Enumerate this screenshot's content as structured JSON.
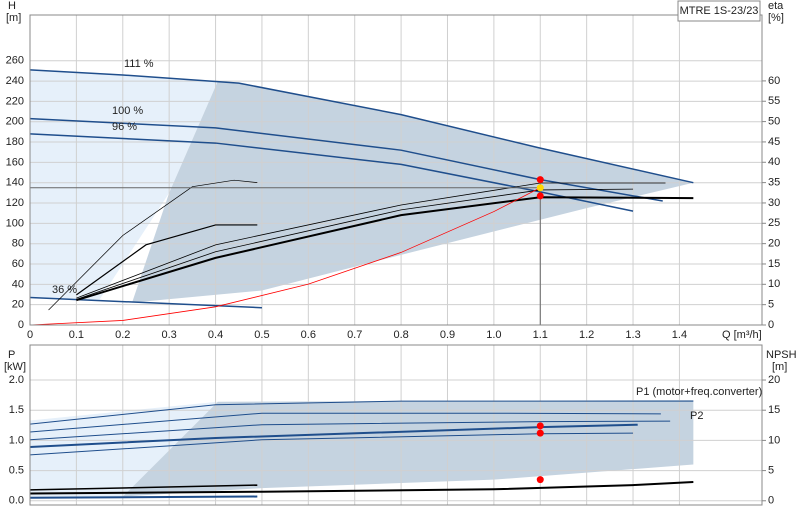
{
  "chart_data": [
    {
      "type": "line",
      "title": "MTRE 1S-23/23",
      "x_label": "Q [m³/h]",
      "y_label": "H",
      "y_unit": "[m]",
      "y2_label": "eta",
      "y2_unit": "[%]",
      "xlim": [
        0,
        1.578
      ],
      "ylim": [
        0,
        305
      ],
      "y2lim": [
        0,
        76.2
      ],
      "grid": true,
      "xticks": [
        0,
        0.1,
        0.2,
        0.3,
        0.4,
        0.5,
        0.6,
        0.7,
        0.8,
        0.9,
        {
          "value": 1,
          "label": "1.0"
        },
        1.1,
        1.2,
        1.3,
        1.4
      ],
      "yticks": [
        0,
        20,
        40,
        60,
        80,
        100,
        120,
        140,
        160,
        180,
        200,
        220,
        240,
        260
      ],
      "y2ticks": [
        0,
        5,
        10,
        15,
        20,
        25,
        30,
        35,
        40,
        45,
        50,
        55,
        60
      ],
      "regions": [
        {
          "color": "#e6f0fa",
          "x": [
            0,
            0.405,
            0.3,
            0.2,
            0.15,
            0
          ],
          "values": [
            251,
            240,
            130,
            60,
            25,
            27
          ]
        },
        {
          "color": "#c5d3e0",
          "x": [
            0.405,
            0.45,
            0.8,
            1.1,
            1.43,
            1.2,
            0.8,
            0.5,
            0.22,
            0.3
          ],
          "values": [
            240,
            238,
            207,
            174,
            140,
            115,
            69,
            34,
            22,
            130
          ]
        }
      ],
      "series": [
        {
          "name": "111 %",
          "color": "#1f4e8c",
          "width": 1.5,
          "x": [
            0,
            0.2,
            0.45,
            0.8,
            1.1,
            1.43
          ],
          "values": [
            251,
            246,
            238,
            207,
            174,
            140
          ]
        },
        {
          "name": "100 %",
          "color": "#1f4e8c",
          "width": 1.5,
          "x": [
            0,
            0.4,
            0.8,
            1.1,
            1.364
          ],
          "values": [
            203,
            194,
            172,
            143,
            122
          ]
        },
        {
          "name": "96 %",
          "color": "#1f4e8c",
          "width": 1.5,
          "x": [
            0,
            0.4,
            0.8,
            1.1,
            1.3
          ],
          "values": [
            188,
            179,
            158,
            131,
            112
          ]
        },
        {
          "name": "36 %",
          "color": "#1f4e8c",
          "width": 1.5,
          "x": [
            0,
            0.5
          ],
          "values": [
            27,
            17
          ]
        },
        {
          "color": "#000000",
          "width": 0.7,
          "axis": "y2",
          "x": [
            0.04,
            0.2,
            0.35,
            0.44,
            0.49
          ],
          "values": [
            3.7,
            22,
            34,
            35.6,
            35
          ]
        },
        {
          "color": "#000000",
          "width": 1.2,
          "axis": "y2",
          "x": [
            0.1,
            0.25,
            0.4,
            0.49
          ],
          "values": [
            7.4,
            19.7,
            24.6,
            24.6
          ]
        },
        {
          "color": "#000000",
          "width": 0.8,
          "axis": "y2",
          "x": [
            0.1,
            0.4,
            0.8,
            1.1,
            1.37
          ],
          "values": [
            6.6,
            19.7,
            29.5,
            34.9,
            34.9
          ]
        },
        {
          "color": "#000000",
          "width": 0.8,
          "axis": "y2",
          "x": [
            0.1,
            0.4,
            0.8,
            1.1,
            1.3
          ],
          "values": [
            6.3,
            18,
            28.3,
            33.2,
            33.4
          ]
        },
        {
          "color": "#000000",
          "width": 2,
          "axis": "y2",
          "x": [
            0.1,
            0.4,
            0.8,
            1.1,
            1.43
          ],
          "values": [
            6.1,
            16.5,
            27,
            31.4,
            31.2
          ]
        },
        {
          "color": "#ff0000",
          "width": 0.8,
          "x": [
            0,
            0.2,
            0.4,
            0.6,
            0.8,
            1,
            1.1
          ],
          "values": [
            0,
            4.5,
            17.9,
            40.2,
            71.4,
            111.6,
            135
          ]
        }
      ],
      "crosshair": {
        "x": 1.1,
        "y": 135
      },
      "markers": {
        "x": [
          1.1,
          1.1,
          1.1
        ],
        "values": [
          143,
          135,
          127
        ],
        "colors": [
          "#ff0000",
          "#ffd700",
          "#ff0000"
        ]
      }
    },
    {
      "type": "line",
      "y_label": "P",
      "y_unit": "[kW]",
      "y2_label": "NPSH",
      "y2_unit": "[m]",
      "xlim": [
        0,
        1.578
      ],
      "ylim": [
        -0.07,
        2.58
      ],
      "y2lim": [
        -0.7,
        25.8
      ],
      "grid": true,
      "yticks": [
        {
          "value": 0,
          "label": "0.0"
        },
        0.5,
        {
          "value": 1,
          "label": "1.0"
        },
        1.5,
        {
          "value": 2,
          "label": "2.0"
        }
      ],
      "y2ticks": [
        0,
        5,
        10,
        15,
        20
      ],
      "regions": [
        {
          "color": "#e6f0fa",
          "x": [
            0,
            0.405,
            0.2,
            0
          ],
          "values": [
            1.33,
            1.64,
            0.07,
            0.07
          ]
        },
        {
          "color": "#c5d3e0",
          "x": [
            0.405,
            1.43,
            1.43,
            1.0,
            0.5,
            0.2
          ],
          "values": [
            1.64,
            1.67,
            0.6,
            0.35,
            0.21,
            0.07
          ]
        }
      ],
      "series": [
        {
          "name": "P1 (motor+freq.converter)",
          "color": "#1f4e8c",
          "width": 1,
          "x": [
            0,
            0.4,
            0.8,
            1.43
          ],
          "values": [
            1.27,
            1.59,
            1.65,
            1.65
          ]
        },
        {
          "name": "P2",
          "color": "#1f4e8c",
          "width": 1,
          "x": [
            0,
            0.5,
            1.0,
            1.36
          ],
          "values": [
            1.14,
            1.45,
            1.45,
            1.44
          ]
        },
        {
          "color": "#1f4e8c",
          "width": 1,
          "x": [
            0,
            0.5,
            1.1,
            1.38
          ],
          "values": [
            1.01,
            1.26,
            1.31,
            1.32
          ]
        },
        {
          "color": "#1f4e8c",
          "width": 2,
          "x": [
            0,
            0.4,
            1.1,
            1.31
          ],
          "values": [
            0.89,
            1.04,
            1.22,
            1.26
          ]
        },
        {
          "color": "#1f4e8c",
          "width": 1,
          "x": [
            0,
            0.5,
            1.1,
            1.3
          ],
          "values": [
            0.76,
            1.01,
            1.11,
            1.12
          ]
        },
        {
          "color": "#000000",
          "width": 1.5,
          "x": [
            0,
            0.49
          ],
          "values": [
            0.18,
            0.26
          ]
        },
        {
          "color": "#1f4e8c",
          "width": 2,
          "x": [
            0,
            0.49
          ],
          "values": [
            0.05,
            0.07
          ]
        },
        {
          "color": "#000000",
          "width": 2,
          "axis": "y2",
          "x": [
            0,
            0.5,
            1.0,
            1.3,
            1.43
          ],
          "values": [
            1.2,
            1.5,
            1.9,
            2.6,
            3.1
          ]
        }
      ],
      "markers": {
        "x": [
          1.1,
          1.1,
          1.1
        ],
        "values": [
          1.24,
          1.12,
          0.35
        ],
        "colors": [
          "#ff0000",
          "#ff0000",
          "#ff0000"
        ]
      }
    }
  ]
}
